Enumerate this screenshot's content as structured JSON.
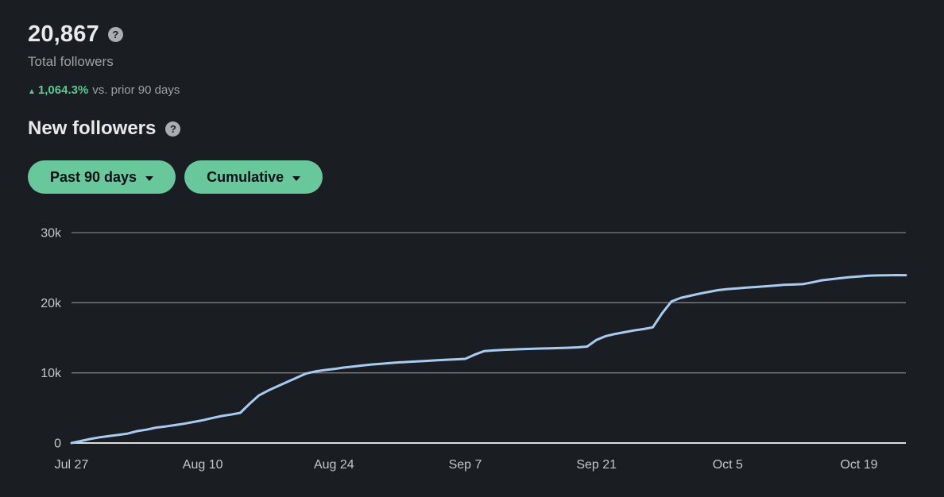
{
  "colors": {
    "background": "#1a1d22",
    "text_primary": "#e8eaec",
    "text_secondary": "#9ba1a6",
    "accent_green": "#5dc794",
    "button_green": "#68c79b",
    "button_text": "#0d1117",
    "line_blue": "#a9cbf1",
    "gridline": "rgba(225,228,230,0.5)",
    "axis_line": "#dadcde",
    "axis_label": "#c3c7ca",
    "help_icon_bg": "#a9aeb2"
  },
  "summary": {
    "total_value": "20,867",
    "total_label": "Total followers",
    "change_arrow": "▲",
    "change_value": "1,064.3%",
    "change_context": "vs. prior 90 days",
    "help_icon_glyph": "?"
  },
  "section": {
    "title": "New followers",
    "help_icon_glyph": "?"
  },
  "filters": {
    "range_button_label": "Past 90 days",
    "mode_button_label": "Cumulative"
  },
  "chart_data": {
    "type": "line",
    "title": "New followers",
    "subtitle": "Cumulative, past 90 days",
    "grid": "horizontal",
    "legend": "none",
    "ylim": [
      0,
      30000
    ],
    "y_tick_values": [
      0,
      10000,
      20000,
      30000
    ],
    "y_tick_labels": [
      "0",
      "10k",
      "20k",
      "30k"
    ],
    "x_ticks": [
      {
        "day": 0,
        "label": "Jul 27"
      },
      {
        "day": 14,
        "label": "Aug 10"
      },
      {
        "day": 28,
        "label": "Aug 24"
      },
      {
        "day": 42,
        "label": "Sep 7"
      },
      {
        "day": 56,
        "label": "Sep 21"
      },
      {
        "day": 70,
        "label": "Oct 5"
      },
      {
        "day": 84,
        "label": "Oct 19"
      }
    ],
    "series": [
      {
        "name": "Cumulative new followers",
        "unit": "followers",
        "x_unit": "day (0 = Jul 27, daily points)",
        "values": [
          0,
          280,
          580,
          820,
          980,
          1150,
          1350,
          1700,
          1900,
          2200,
          2350,
          2550,
          2750,
          3000,
          3250,
          3550,
          3850,
          4050,
          4300,
          5600,
          6800,
          7500,
          8100,
          8700,
          9300,
          9900,
          10200,
          10400,
          10550,
          10750,
          10900,
          11050,
          11200,
          11300,
          11400,
          11500,
          11570,
          11650,
          11720,
          11800,
          11870,
          11930,
          12000,
          12600,
          13100,
          13200,
          13280,
          13340,
          13390,
          13430,
          13470,
          13500,
          13540,
          13580,
          13640,
          13750,
          14700,
          15250,
          15550,
          15800,
          16050,
          16250,
          16500,
          18500,
          20200,
          20700,
          21000,
          21300,
          21550,
          21800,
          21950,
          22050,
          22150,
          22250,
          22350,
          22450,
          22550,
          22600,
          22650,
          22900,
          23200,
          23350,
          23500,
          23650,
          23750,
          23850,
          23900,
          23920,
          23940,
          23930
        ]
      }
    ]
  }
}
